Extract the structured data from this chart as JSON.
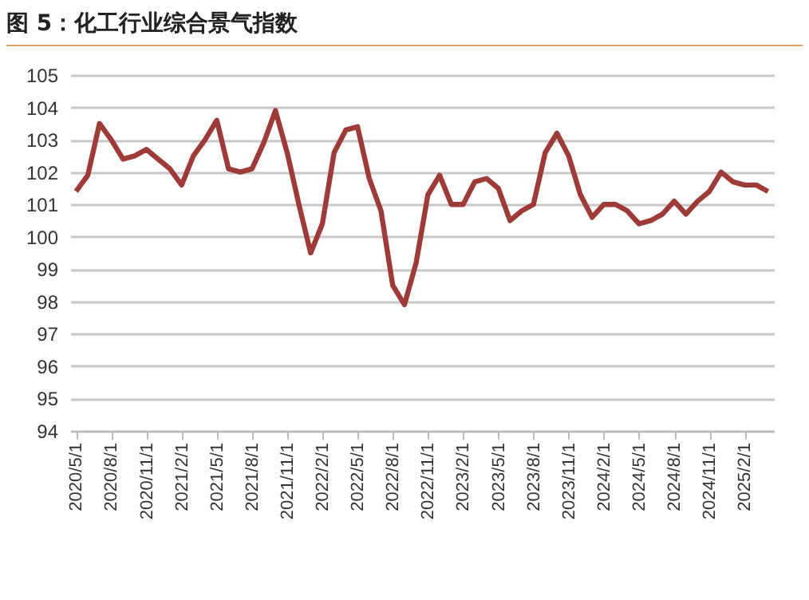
{
  "chart_data": {
    "type": "line",
    "title": "图 5：化工行业综合景气指数",
    "categories": [
      "2020/5/1",
      null,
      null,
      "2020/8/1",
      null,
      null,
      "2020/11/1",
      null,
      null,
      "2021/2/1",
      null,
      null,
      "2021/5/1",
      null,
      null,
      "2021/8/1",
      null,
      null,
      "2021/11/1",
      null,
      null,
      "2022/2/1",
      null,
      null,
      "2022/5/1",
      null,
      null,
      "2022/8/1",
      null,
      null,
      "2022/11/1",
      null,
      null,
      "2023/2/1",
      null,
      null,
      "2023/5/1",
      null,
      null,
      "2023/8/1",
      null,
      null,
      "2023/11/1",
      null,
      null,
      "2024/2/1",
      null,
      null,
      "2024/5/1",
      null,
      null,
      "2024/8/1",
      null,
      null,
      "2024/11/1",
      null,
      null,
      "2025/2/1",
      null,
      null
    ],
    "series": [
      {
        "color": "#9e3a37",
        "values": [
          101.4,
          101.9,
          103.5,
          103.0,
          102.4,
          102.5,
          102.7,
          102.4,
          102.1,
          101.6,
          102.5,
          103.0,
          103.6,
          102.1,
          102.0,
          102.1,
          102.9,
          103.9,
          102.6,
          101.0,
          99.5,
          100.4,
          102.6,
          103.3,
          103.4,
          101.8,
          100.8,
          98.5,
          97.9,
          99.2,
          101.3,
          101.9,
          101.0,
          101.0,
          101.7,
          101.8,
          101.5,
          100.5,
          100.8,
          101.0,
          102.6,
          103.2,
          102.5,
          101.3,
          100.6,
          101.0,
          101.0,
          100.8,
          100.4,
          100.5,
          100.7,
          101.1,
          100.7,
          101.1,
          101.4,
          102.0,
          101.7,
          101.6,
          101.6,
          101.4
        ]
      }
    ],
    "ylim": [
      94,
      105
    ],
    "yticks": [
      94,
      95,
      96,
      97,
      98,
      99,
      100,
      101,
      102,
      103,
      104,
      105
    ],
    "grid": "y"
  }
}
